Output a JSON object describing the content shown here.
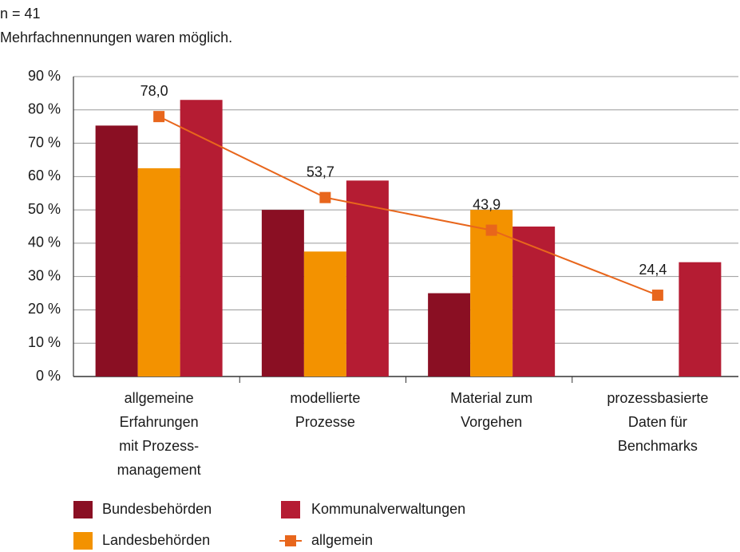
{
  "chart_data": {
    "type": "bar",
    "notes": [
      "n = 41",
      "Mehrfachnennungen waren möglich."
    ],
    "categories": [
      "allgemeine\nErfahrungen\nmit Prozess-\nmanagement",
      "modellierte\nProzesse",
      "Material zum\nVorgehen",
      "prozessbasierte\nDaten für\nBenchmarks"
    ],
    "series": [
      {
        "name": "Bundesbehörden",
        "color": "#8a0f23",
        "values": [
          75.3,
          50,
          25,
          0
        ]
      },
      {
        "name": "Landesbehörden",
        "color": "#f39200",
        "values": [
          62.5,
          37.5,
          50,
          0
        ]
      },
      {
        "name": "Kommunalverwaltungen",
        "color": "#b51c33",
        "values": [
          83,
          58.8,
          45,
          34.3
        ]
      },
      {
        "name": "allgemein",
        "color": "#e8661c",
        "type": "line",
        "values": [
          78.0,
          53.7,
          43.9,
          24.4
        ],
        "value_labels": [
          "78,0",
          "53,7",
          "43,9",
          "24,4"
        ]
      }
    ],
    "ylim": [
      0,
      90
    ],
    "yticks": [
      {
        "value": 0,
        "label": "0 %"
      },
      {
        "value": 10,
        "label": "10 %"
      },
      {
        "value": 20,
        "label": "20 %"
      },
      {
        "value": 30,
        "label": "30 %"
      },
      {
        "value": 40,
        "label": "40 %"
      },
      {
        "value": 50,
        "label": "50 %"
      },
      {
        "value": 60,
        "label": "60 %"
      },
      {
        "value": 70,
        "label": "70 %"
      },
      {
        "value": 80,
        "label": "80 %"
      },
      {
        "value": 90,
        "label": "90 %"
      }
    ],
    "grid": true
  }
}
